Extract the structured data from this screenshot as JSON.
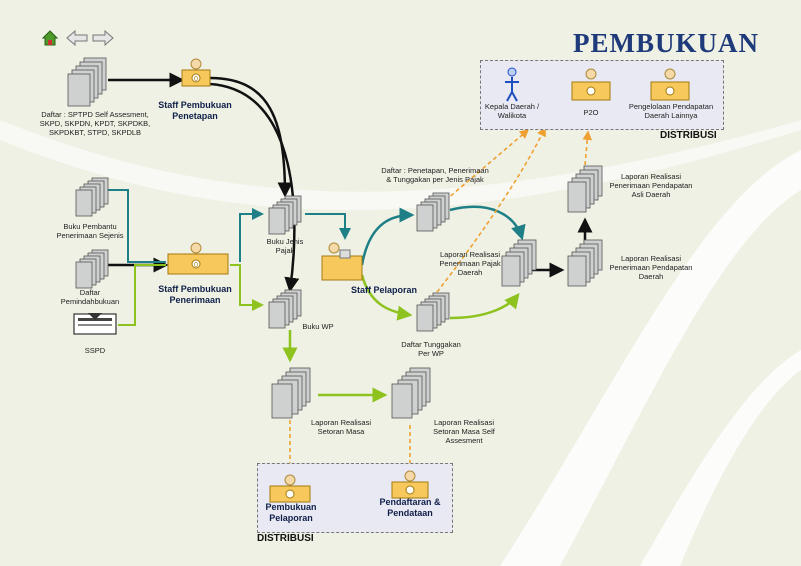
{
  "title": "PEMBUKUAN",
  "nav": {
    "home_icon": "home-icon",
    "back_icon": "arrow-left-icon",
    "forward_icon": "arrow-right-icon"
  },
  "labels": {
    "daftar_sptpd": "Daftar : SPTPD Self Assesment, SKPD, SKPDN, KPDT, SKPDKB, SKPDKBT, STPD, SKPDLB",
    "staff_penetapan": "Staff Pembukuan Penetapan",
    "buku_pembantu": "Buku Pembantu Penerimaan Sejenis",
    "daftar_pemindahbukuan": "Daftar Pemindahbukuan",
    "sspd": "SSPD",
    "staff_penerimaan": "Staff Pembukuan Penerimaan",
    "buku_jenis_pajak": "Buku Jenis Pajak",
    "buku_wp": "Buku WP",
    "staff_pelaporan": "Staff Pelaporan",
    "daftar_penetapan": "Daftar : Penetapan, Penerimaan & Tunggakan per Jenis Pajak",
    "daftar_tunggakan": "Daftar Tunggakan Per WP",
    "laporan_pajak_daerah": "Laporan Realisasi Penerimaan Pajak Daerah",
    "laporan_pad": "Laporan Realisasi Penerimaan Pendapatan Asli Daerah",
    "laporan_pendapatan_daerah": "Laporan Realisasi Penerimaan Pendapatan Daerah",
    "laporan_setoran_masa": "Laporan Realisasi Setoran Masa",
    "laporan_setoran_self": "Laporan Realisasi Setoran Masa Self Assesment",
    "kepala_daerah": "Kepala Daerah / Walikota",
    "p2o": "P2O",
    "pengelolaan": "Pengelolaan Pendapatan Daerah Lainnya",
    "distribusi_top": "DISTRIBUSI",
    "pembukuan_pelaporan": "Pembukuan Pelaporan",
    "pendaftaran_pendataan": "Pendaftaran & Pendataan",
    "distribusi_bottom": "DISTRIBUSI"
  },
  "colors": {
    "black_flow": "#111111",
    "teal_flow": "#1f7f86",
    "green_flow": "#8dc21f",
    "orange_dash": "#f0a030",
    "title": "#1f3a7a"
  }
}
